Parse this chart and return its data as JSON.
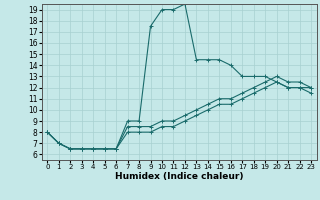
{
  "title": "",
  "xlabel": "Humidex (Indice chaleur)",
  "bg_color": "#c5e8e8",
  "line_color": "#1a6b6b",
  "grid_color": "#a8d0d0",
  "xlim": [
    -0.5,
    23.5
  ],
  "ylim": [
    5.5,
    19.5
  ],
  "xticks": [
    0,
    1,
    2,
    3,
    4,
    5,
    6,
    7,
    8,
    9,
    10,
    11,
    12,
    13,
    14,
    15,
    16,
    17,
    18,
    19,
    20,
    21,
    22,
    23
  ],
  "yticks": [
    6,
    7,
    8,
    9,
    10,
    11,
    12,
    13,
    14,
    15,
    16,
    17,
    18,
    19
  ],
  "series": [
    {
      "x": [
        0,
        1,
        2,
        3,
        4,
        5,
        6,
        7,
        8,
        9,
        10,
        11,
        12,
        13,
        14,
        15,
        16,
        17,
        18,
        19,
        20,
        21,
        22,
        23
      ],
      "y": [
        8,
        7,
        6.5,
        6.5,
        6.5,
        6.5,
        6.5,
        9,
        9,
        17.5,
        19,
        19,
        19.5,
        14.5,
        14.5,
        14.5,
        14,
        13,
        13,
        13,
        12.5,
        12,
        12,
        12
      ]
    },
    {
      "x": [
        0,
        1,
        2,
        3,
        4,
        5,
        6,
        7,
        8,
        9,
        10,
        11,
        12,
        13,
        14,
        15,
        16,
        17,
        18,
        19,
        20,
        21,
        22,
        23
      ],
      "y": [
        8,
        7,
        6.5,
        6.5,
        6.5,
        6.5,
        6.5,
        8.5,
        8.5,
        8.5,
        9,
        9,
        9.5,
        10,
        10.5,
        11,
        11,
        11.5,
        12,
        12.5,
        13,
        12.5,
        12.5,
        12
      ]
    },
    {
      "x": [
        0,
        1,
        2,
        3,
        4,
        5,
        6,
        7,
        8,
        9,
        10,
        11,
        12,
        13,
        14,
        15,
        16,
        17,
        18,
        19,
        20,
        21,
        22,
        23
      ],
      "y": [
        8,
        7,
        6.5,
        6.5,
        6.5,
        6.5,
        6.5,
        8,
        8,
        8,
        8.5,
        8.5,
        9,
        9.5,
        10,
        10.5,
        10.5,
        11,
        11.5,
        12,
        12.5,
        12,
        12,
        11.5
      ]
    }
  ],
  "xlabel_fontsize": 6.5,
  "xlabel_fontweight": "bold",
  "tick_fontsize": 5,
  "ytick_fontsize": 5.5
}
